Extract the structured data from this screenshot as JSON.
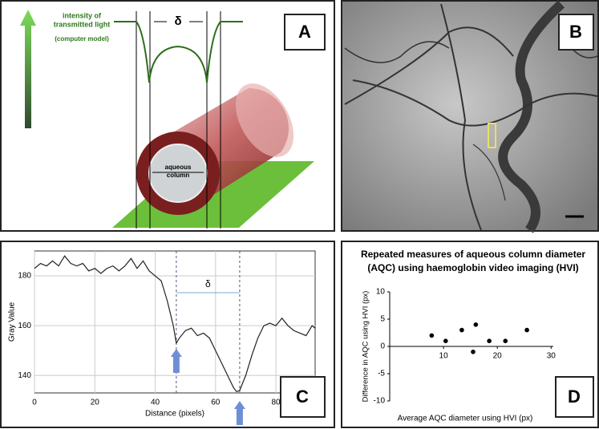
{
  "panels": {
    "a": {
      "label": "A",
      "light_label": [
        "intensity of",
        "transmitted light"
      ],
      "model_note": "(computer model)",
      "delta": "δ",
      "lumen": [
        "aqueous",
        "column"
      ]
    },
    "b": {
      "label": "B"
    },
    "c": {
      "label": "C"
    },
    "d": {
      "label": "D"
    }
  },
  "chart_data": [
    {
      "type": "line",
      "ylabel": "Gray Value",
      "xlabel": "Distance (pixels)",
      "annotation": "δ",
      "x": [
        0,
        2,
        4,
        6,
        8,
        10,
        12,
        14,
        16,
        18,
        20,
        22,
        24,
        26,
        28,
        30,
        32,
        34,
        36,
        38,
        40,
        42,
        44,
        46,
        47,
        48,
        50,
        52,
        54,
        56,
        58,
        60,
        62,
        64,
        66,
        67,
        68,
        70,
        72,
        74,
        76,
        78,
        80,
        82,
        84,
        86,
        88,
        90,
        92,
        93
      ],
      "series": [
        {
          "color": "#222222",
          "values": [
            183,
            185,
            184,
            186,
            184,
            188,
            185,
            184,
            185,
            182,
            183,
            181,
            183,
            184,
            182,
            184,
            187,
            183,
            186,
            182,
            180,
            178,
            170,
            160,
            153,
            155,
            158,
            159,
            156,
            157,
            155,
            150,
            145,
            140,
            135,
            133.5,
            134,
            140,
            148,
            155,
            160,
            161,
            160,
            163,
            160,
            158,
            157,
            156,
            160,
            159
          ]
        }
      ],
      "vlines": [
        47,
        68
      ],
      "xlim": [
        0,
        93
      ],
      "ylim": [
        133,
        190
      ],
      "xticks": [
        0,
        20,
        40,
        60,
        80
      ],
      "yticks": [
        140,
        160,
        180
      ],
      "grid": true
    },
    {
      "type": "scatter",
      "title": [
        "Repeated measures of aqueous column diameter",
        "(AQC) using haemoglobin video imaging (HVI)"
      ],
      "xlabel": "Average AQC diameter using HVI (px)",
      "ylabel": "Difference in AQC using HVI (px)",
      "x": [
        7.8,
        10.4,
        13.4,
        15.5,
        16,
        18.5,
        21.5,
        25.5
      ],
      "values": [
        2,
        1,
        3,
        -1,
        4,
        1,
        1,
        3
      ],
      "color": "#000000",
      "xlim": [
        0,
        31
      ],
      "ylim": [
        -10,
        10
      ],
      "xticks": [
        10,
        20,
        30
      ],
      "yticks": [
        -10,
        -5,
        0,
        5,
        10
      ]
    }
  ]
}
